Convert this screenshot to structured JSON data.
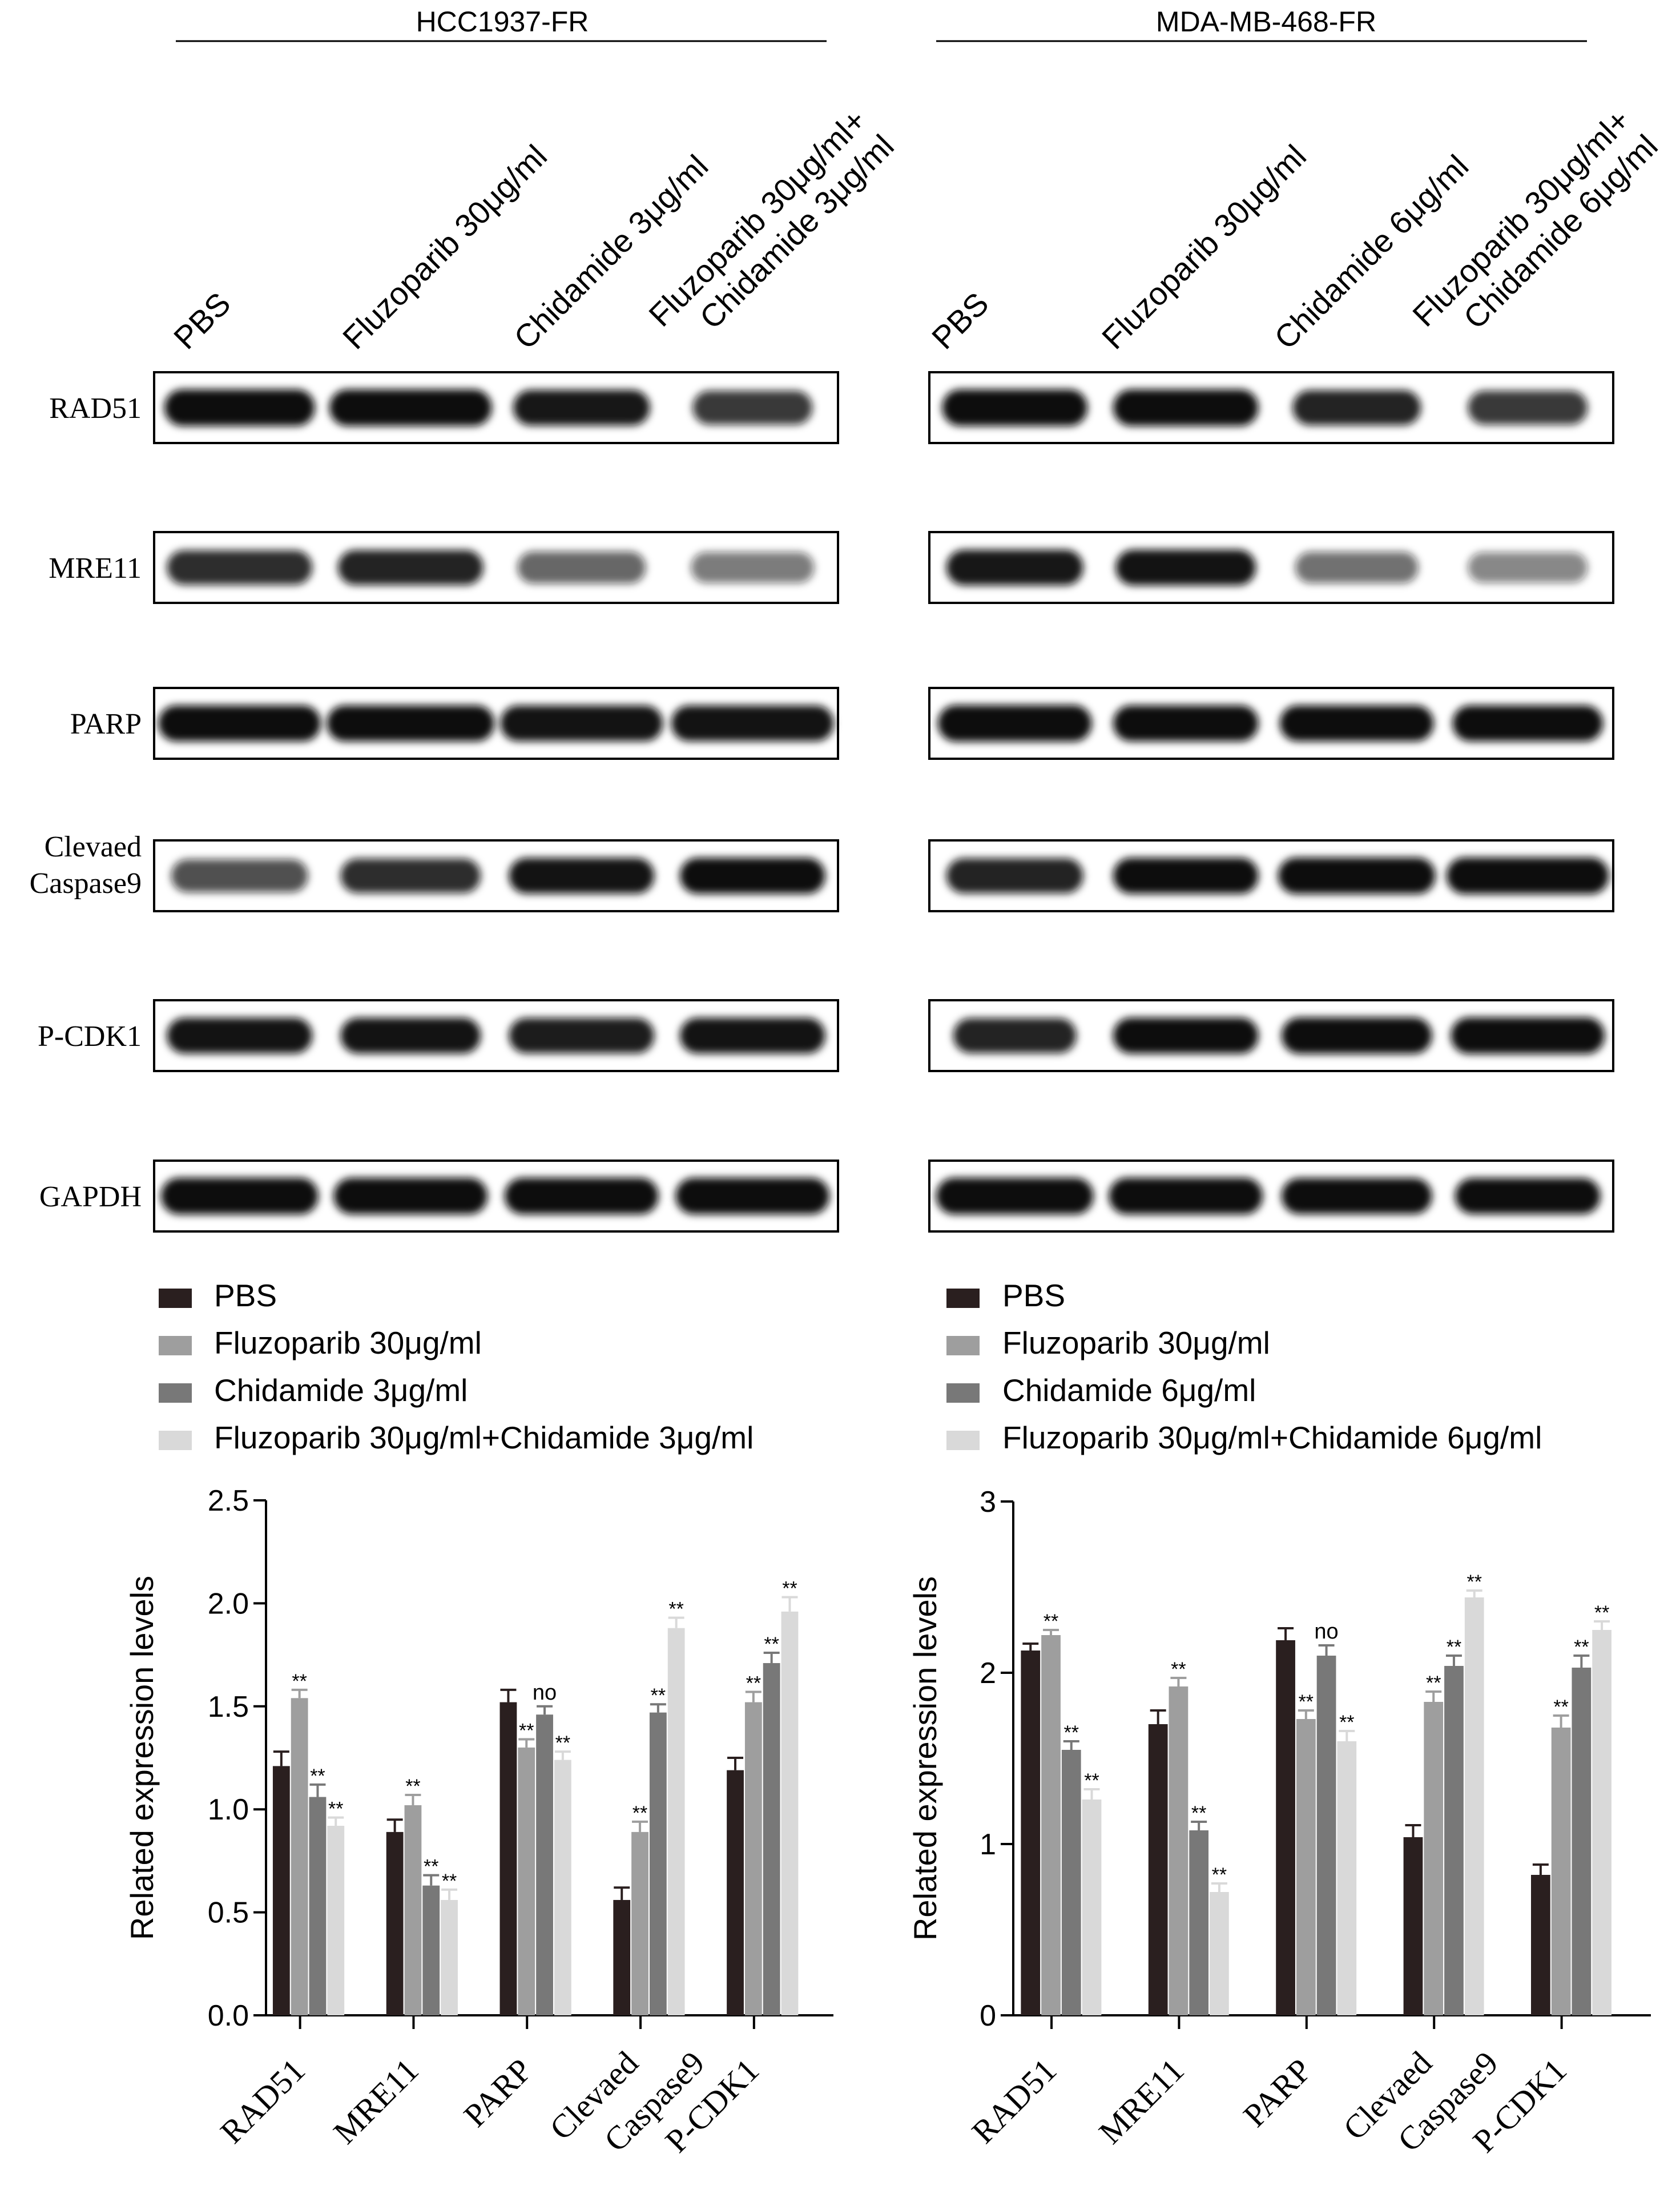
{
  "panels": [
    {
      "cell_line": "HCC1937-FR",
      "lanes": [
        "PBS",
        "Fluzoparib 30μg/ml",
        "Chidamide 3μg/ml",
        [
          "Fluzoparib 30μg/ml+",
          "Chidamide 3μg/ml"
        ]
      ],
      "blots": [
        {
          "label": [
            "RAD51"
          ],
          "intensity": [
            1.0,
            1.0,
            0.9,
            0.75
          ],
          "width": [
            0.88,
            0.95,
            0.8,
            0.7
          ]
        },
        {
          "label": [
            "MRE11"
          ],
          "intensity": [
            0.8,
            0.85,
            0.55,
            0.45
          ],
          "width": [
            0.85,
            0.85,
            0.75,
            0.72
          ]
        },
        {
          "label": [
            "PARP"
          ],
          "intensity": [
            0.95,
            0.95,
            0.92,
            0.92
          ],
          "width": [
            0.95,
            0.98,
            0.95,
            0.95
          ]
        },
        {
          "label": [
            "Clevaed",
            "Caspase9"
          ],
          "intensity": [
            0.65,
            0.8,
            0.92,
            0.95
          ],
          "width": [
            0.8,
            0.82,
            0.85,
            0.85
          ]
        },
        {
          "label": [
            "P-CDK1"
          ],
          "intensity": [
            0.92,
            0.92,
            0.88,
            0.92
          ],
          "width": [
            0.85,
            0.82,
            0.85,
            0.85
          ]
        },
        {
          "label": [
            "GAPDH"
          ],
          "intensity": [
            1.0,
            0.98,
            0.98,
            0.98
          ],
          "width": [
            0.92,
            0.9,
            0.9,
            0.9
          ]
        }
      ]
    },
    {
      "cell_line": "MDA-MB-468-FR",
      "lanes": [
        "PBS",
        "Fluzoparib 30μg/ml",
        "Chidamide 6μg/ml",
        [
          "Fluzoparib 30μg/ml+",
          "Chidamide 6μg/ml"
        ]
      ],
      "blots": [
        {
          "label": [
            "RAD51"
          ],
          "intensity": [
            1.0,
            1.0,
            0.85,
            0.75
          ],
          "width": [
            0.85,
            0.85,
            0.75,
            0.7
          ]
        },
        {
          "label": [
            "MRE11"
          ],
          "intensity": [
            0.9,
            0.92,
            0.5,
            0.4
          ],
          "width": [
            0.8,
            0.82,
            0.72,
            0.7
          ]
        },
        {
          "label": [
            "PARP"
          ],
          "intensity": [
            1.0,
            0.95,
            0.95,
            0.95
          ],
          "width": [
            0.9,
            0.85,
            0.9,
            0.88
          ]
        },
        {
          "label": [
            "Clevaed",
            "Caspase9"
          ],
          "intensity": [
            0.85,
            0.95,
            0.98,
            1.0
          ],
          "width": [
            0.8,
            0.85,
            0.92,
            0.95
          ]
        },
        {
          "label": [
            "P-CDK1"
          ],
          "intensity": [
            0.85,
            0.95,
            0.98,
            1.0
          ],
          "width": [
            0.72,
            0.85,
            0.88,
            0.9
          ]
        },
        {
          "label": [
            "GAPDH"
          ],
          "intensity": [
            1.0,
            1.0,
            0.95,
            0.95
          ],
          "width": [
            0.92,
            0.9,
            0.88,
            0.85
          ]
        }
      ]
    }
  ],
  "colors": {
    "series": [
      "#2a1f1f",
      "#9e9e9e",
      "#787878",
      "#d9d9d9"
    ],
    "axis": "#000000",
    "band": "#111111"
  },
  "chart_data": [
    {
      "type": "bar",
      "categories": [
        "RAD51",
        "MRE11",
        "PARP",
        [
          "Clevaed",
          "Caspase9"
        ],
        "P-CDK1"
      ],
      "series": [
        {
          "name": "PBS",
          "values": [
            1.21,
            0.89,
            1.52,
            0.56,
            1.19
          ],
          "errors": [
            0.07,
            0.06,
            0.06,
            0.06,
            0.06
          ],
          "marks": [
            "",
            "",
            "",
            "",
            ""
          ]
        },
        {
          "name": "Fluzoparib 30μg/ml",
          "values": [
            1.54,
            1.02,
            1.3,
            0.89,
            1.52
          ],
          "errors": [
            0.04,
            0.05,
            0.04,
            0.05,
            0.05
          ],
          "marks": [
            "**",
            "**",
            "**",
            "**",
            "**"
          ]
        },
        {
          "name": "Chidamide 3μg/ml",
          "values": [
            1.06,
            0.63,
            1.46,
            1.47,
            1.71
          ],
          "errors": [
            0.06,
            0.05,
            0.04,
            0.04,
            0.05
          ],
          "marks": [
            "**",
            "**",
            "no",
            "**",
            "**"
          ]
        },
        {
          "name": "Fluzoparib 30μg/ml+Chidamide 3μg/ml",
          "values": [
            0.92,
            0.56,
            1.24,
            1.88,
            1.96
          ],
          "errors": [
            0.04,
            0.05,
            0.04,
            0.05,
            0.07
          ],
          "marks": [
            "**",
            "**",
            "**",
            "**",
            "**"
          ]
        }
      ],
      "ylabel": "Related expression levels",
      "ylim": [
        0,
        2.5
      ],
      "yticks": [
        "0.0",
        "0.5",
        "1.0",
        "1.5",
        "2.0",
        "2.5"
      ],
      "legend": "top"
    },
    {
      "type": "bar",
      "categories": [
        "RAD51",
        "MRE11",
        "PARP",
        [
          "Clevaed",
          "Caspase9"
        ],
        "P-CDK1"
      ],
      "series": [
        {
          "name": "PBS",
          "values": [
            2.13,
            1.7,
            2.19,
            1.04,
            0.82
          ],
          "errors": [
            0.04,
            0.08,
            0.07,
            0.07,
            0.06
          ],
          "marks": [
            "",
            "",
            "",
            "",
            ""
          ]
        },
        {
          "name": "Fluzoparib 30μg/ml",
          "values": [
            2.22,
            1.92,
            1.73,
            1.83,
            1.68
          ],
          "errors": [
            0.03,
            0.05,
            0.05,
            0.06,
            0.07
          ],
          "marks": [
            "**",
            "**",
            "**",
            "**",
            "**"
          ]
        },
        {
          "name": "Chidamide 6μg/ml",
          "values": [
            1.55,
            1.08,
            2.1,
            2.04,
            2.03
          ],
          "errors": [
            0.05,
            0.05,
            0.06,
            0.06,
            0.07
          ],
          "marks": [
            "**",
            "**",
            "no",
            "**",
            "**"
          ]
        },
        {
          "name": "Fluzoparib 30μg/ml+Chidamide 6μg/ml",
          "values": [
            1.26,
            0.72,
            1.6,
            2.44,
            2.25
          ],
          "errors": [
            0.06,
            0.05,
            0.06,
            0.04,
            0.05
          ],
          "marks": [
            "**",
            "**",
            "**",
            "**",
            "**"
          ]
        }
      ],
      "ylabel": "Related expression levels",
      "ylim": [
        0,
        3
      ],
      "yticks": [
        "0",
        "1",
        "2",
        "3"
      ],
      "legend": "top"
    }
  ]
}
